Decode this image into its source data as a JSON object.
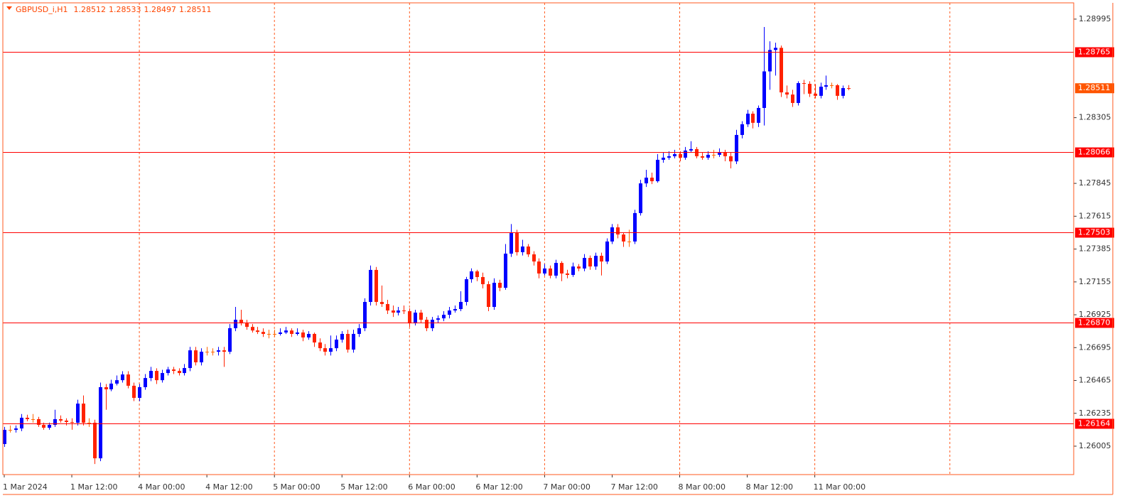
{
  "chart_data": {
    "type": "candlestick",
    "symbol": "GBPUSD_i,H1",
    "up_color": "#0000ff",
    "down_color": "#ff2200",
    "flat_color": "#ff6600",
    "frame_color": "#ff5a1f",
    "level_color": "#ff0000",
    "price_color": "#ff5500",
    "ylim": [
      1.25806,
      1.29109
    ],
    "xlim": [
      -0.25,
      190
    ],
    "yticks": [
      1.28995,
      1.28305,
      1.27845,
      1.27615,
      1.27385,
      1.27155,
      1.26925,
      1.26695,
      1.26465,
      1.26235,
      1.26005
    ],
    "xticks": [
      {
        "value": 0,
        "label": "1 Mar 2024"
      },
      {
        "value": 12,
        "label": "1 Mar 12:00"
      },
      {
        "value": 24,
        "label": "4 Mar 00:00"
      },
      {
        "value": 36,
        "label": "4 Mar 12:00"
      },
      {
        "value": 48,
        "label": "5 Mar 00:00"
      },
      {
        "value": 60,
        "label": "5 Mar 12:00"
      },
      {
        "value": 72,
        "label": "6 Mar 00:00"
      },
      {
        "value": 84,
        "label": "6 Mar 12:00"
      },
      {
        "value": 96,
        "label": "7 Mar 00:00"
      },
      {
        "value": 108,
        "label": "7 Mar 12:00"
      },
      {
        "value": 120,
        "label": "8 Mar 00:00"
      },
      {
        "value": 132,
        "label": "8 Mar 12:00"
      },
      {
        "value": 144,
        "label": "11 Mar 00:00"
      }
    ],
    "xgrid": [
      24,
      48,
      72,
      96,
      120,
      144,
      168
    ],
    "levels": [
      1.28765,
      1.28066,
      1.27503,
      {
        "value": 1.2687,
        "label": "1.26870"
      },
      1.26164
    ],
    "candles": [
      [
        1.2602,
        1.2614,
        1.26,
        1.26119
      ],
      [
        1.26119,
        1.2615,
        1.261,
        1.26119
      ],
      [
        1.26119,
        1.2615,
        1.261,
        1.26129
      ],
      [
        1.26129,
        1.2623,
        1.2611,
        1.26204
      ],
      [
        1.26204,
        1.26225,
        1.2618,
        1.26194
      ],
      [
        1.26194,
        1.2623,
        1.2617,
        1.26194
      ],
      [
        1.26194,
        1.2621,
        1.2614,
        1.26154
      ],
      [
        1.26154,
        1.2617,
        1.2612,
        1.26134
      ],
      [
        1.26134,
        1.2617,
        1.2612,
        1.26154
      ],
      [
        1.26154,
        1.2626,
        1.2614,
        1.26194
      ],
      [
        1.26194,
        1.2622,
        1.2617,
        1.26184
      ],
      [
        1.26184,
        1.262,
        1.2615,
        1.26174
      ],
      [
        1.26174,
        1.262,
        1.2612,
        1.26169
      ],
      [
        1.26169,
        1.2633,
        1.2615,
        1.26303
      ],
      [
        1.26303,
        1.2636,
        1.2615,
        1.26169
      ],
      [
        1.26169,
        1.262,
        1.2614,
        1.26169
      ],
      [
        1.26169,
        1.2619,
        1.2588,
        1.2592
      ],
      [
        1.2592,
        1.2645,
        1.259,
        1.26418
      ],
      [
        1.26418,
        1.2644,
        1.2626,
        1.26403
      ],
      [
        1.26403,
        1.2647,
        1.2639,
        1.26443
      ],
      [
        1.26443,
        1.265,
        1.2643,
        1.26467
      ],
      [
        1.26467,
        1.2653,
        1.2645,
        1.26507
      ],
      [
        1.26507,
        1.2653,
        1.2641,
        1.26428
      ],
      [
        1.26428,
        1.2645,
        1.2632,
        1.26343
      ],
      [
        1.26343,
        1.2644,
        1.2632,
        1.26418
      ],
      [
        1.26418,
        1.2651,
        1.264,
        1.26482
      ],
      [
        1.26482,
        1.2656,
        1.2646,
        1.26532
      ],
      [
        1.26532,
        1.2655,
        1.2644,
        1.26467
      ],
      [
        1.26467,
        1.2654,
        1.2645,
        1.26517
      ],
      [
        1.26517,
        1.2656,
        1.265,
        1.26542
      ],
      [
        1.26542,
        1.2656,
        1.2651,
        1.26532
      ],
      [
        1.26532,
        1.2655,
        1.265,
        1.26517
      ],
      [
        1.26517,
        1.2658,
        1.265,
        1.26552
      ],
      [
        1.26552,
        1.267,
        1.2653,
        1.26676
      ],
      [
        1.26676,
        1.267,
        1.2657,
        1.26592
      ],
      [
        1.26592,
        1.2669,
        1.2657,
        1.26666
      ],
      [
        1.26666,
        1.267,
        1.2664,
        1.26666
      ],
      [
        1.26666,
        1.2669,
        1.2664,
        1.26666
      ],
      [
        1.26666,
        1.267,
        1.2664,
        1.26676
      ],
      [
        1.26676,
        1.267,
        1.2656,
        1.26666
      ],
      [
        1.26666,
        1.2686,
        1.2665,
        1.26831
      ],
      [
        1.26831,
        1.2698,
        1.2681,
        1.2689
      ],
      [
        1.2689,
        1.2696,
        1.2685,
        1.26865
      ],
      [
        1.26865,
        1.2689,
        1.2682,
        1.2684
      ],
      [
        1.2684,
        1.2686,
        1.268,
        1.26815
      ],
      [
        1.26815,
        1.2684,
        1.2679,
        1.26805
      ],
      [
        1.26805,
        1.2683,
        1.2677,
        1.26791
      ],
      [
        1.26791,
        1.2682,
        1.2676,
        1.26791
      ],
      [
        1.26791,
        1.2682,
        1.2677,
        1.26791
      ],
      [
        1.26791,
        1.2683,
        1.2678,
        1.26801
      ],
      [
        1.26801,
        1.2684,
        1.2679,
        1.26815
      ],
      [
        1.26815,
        1.2683,
        1.2677,
        1.26791
      ],
      [
        1.26791,
        1.2683,
        1.2678,
        1.26801
      ],
      [
        1.26801,
        1.2682,
        1.2674,
        1.26766
      ],
      [
        1.26766,
        1.2681,
        1.2675,
        1.26791
      ],
      [
        1.26791,
        1.268,
        1.267,
        1.26731
      ],
      [
        1.26731,
        1.2676,
        1.2667,
        1.26691
      ],
      [
        1.26691,
        1.2672,
        1.2664,
        1.26666
      ],
      [
        1.26666,
        1.2678,
        1.2664,
        1.26691
      ],
      [
        1.26691,
        1.2678,
        1.2667,
        1.26751
      ],
      [
        1.26751,
        1.2681,
        1.2673,
        1.26791
      ],
      [
        1.26791,
        1.2682,
        1.2666,
        1.26681
      ],
      [
        1.26681,
        1.2682,
        1.2666,
        1.26791
      ],
      [
        1.26791,
        1.2686,
        1.2677,
        1.26831
      ],
      [
        1.26831,
        1.2704,
        1.2681,
        1.27015
      ],
      [
        1.27015,
        1.2727,
        1.2699,
        1.27239
      ],
      [
        1.27239,
        1.2726,
        1.2699,
        1.27015
      ],
      [
        1.27015,
        1.2713,
        1.2698,
        1.27
      ],
      [
        1.27,
        1.2703,
        1.2693,
        1.26955
      ],
      [
        1.26955,
        1.2699,
        1.2691,
        1.2694
      ],
      [
        1.2694,
        1.2698,
        1.2692,
        1.26955
      ],
      [
        1.26955,
        1.2699,
        1.2693,
        1.2695
      ],
      [
        1.2695,
        1.2697,
        1.2684,
        1.26865
      ],
      [
        1.26865,
        1.2696,
        1.2685,
        1.2694
      ],
      [
        1.2694,
        1.2696,
        1.2687,
        1.2689
      ],
      [
        1.2689,
        1.2691,
        1.2681,
        1.26831
      ],
      [
        1.26831,
        1.2691,
        1.2681,
        1.2689
      ],
      [
        1.2689,
        1.2692,
        1.2687,
        1.269
      ],
      [
        1.269,
        1.2695,
        1.2688,
        1.26925
      ],
      [
        1.26925,
        1.2698,
        1.269,
        1.26955
      ],
      [
        1.26955,
        1.2699,
        1.2694,
        1.26965
      ],
      [
        1.26965,
        1.2709,
        1.2695,
        1.27015
      ],
      [
        1.27015,
        1.2719,
        1.2699,
        1.27174
      ],
      [
        1.27174,
        1.2725,
        1.2715,
        1.27229
      ],
      [
        1.27229,
        1.2724,
        1.2716,
        1.27189
      ],
      [
        1.27189,
        1.2722,
        1.2711,
        1.27139
      ],
      [
        1.27139,
        1.2716,
        1.2695,
        1.2698
      ],
      [
        1.2698,
        1.2718,
        1.2696,
        1.27149
      ],
      [
        1.27149,
        1.2717,
        1.2709,
        1.27114
      ],
      [
        1.27114,
        1.2742,
        1.271,
        1.27353
      ],
      [
        1.27353,
        1.2756,
        1.2733,
        1.27497
      ],
      [
        1.27497,
        1.2752,
        1.2734,
        1.27363
      ],
      [
        1.27363,
        1.2745,
        1.2734,
        1.27403
      ],
      [
        1.27403,
        1.2742,
        1.2733,
        1.27348
      ],
      [
        1.27348,
        1.2737,
        1.2727,
        1.27298
      ],
      [
        1.27298,
        1.2732,
        1.2718,
        1.27214
      ],
      [
        1.27214,
        1.2728,
        1.272,
        1.27249
      ],
      [
        1.27249,
        1.2727,
        1.2718,
        1.27199
      ],
      [
        1.27199,
        1.2731,
        1.2718,
        1.27288
      ],
      [
        1.27288,
        1.273,
        1.2716,
        1.27214
      ],
      [
        1.27214,
        1.2724,
        1.2718,
        1.27204
      ],
      [
        1.27204,
        1.2729,
        1.2719,
        1.27263
      ],
      [
        1.27263,
        1.2728,
        1.2723,
        1.27249
      ],
      [
        1.27249,
        1.2735,
        1.2723,
        1.27323
      ],
      [
        1.27323,
        1.2734,
        1.2724,
        1.27263
      ],
      [
        1.27263,
        1.2736,
        1.2724,
        1.27338
      ],
      [
        1.27338,
        1.2736,
        1.272,
        1.27298
      ],
      [
        1.27298,
        1.2746,
        1.2728,
        1.27438
      ],
      [
        1.27438,
        1.2756,
        1.2742,
        1.27537
      ],
      [
        1.27537,
        1.2756,
        1.2746,
        1.27487
      ],
      [
        1.27487,
        1.275,
        1.274,
        1.27438
      ],
      [
        1.27438,
        1.2752,
        1.274,
        1.27438
      ],
      [
        1.27438,
        1.2766,
        1.2742,
        1.27637
      ],
      [
        1.27637,
        1.2787,
        1.2762,
        1.27845
      ],
      [
        1.27845,
        1.2794,
        1.2782,
        1.27885
      ],
      [
        1.27885,
        1.2792,
        1.2784,
        1.2786
      ],
      [
        1.2786,
        1.2805,
        1.2785,
        1.2801
      ],
      [
        1.2801,
        1.2806,
        1.2799,
        1.28025
      ],
      [
        1.28025,
        1.2807,
        1.2801,
        1.28035
      ],
      [
        1.28035,
        1.2808,
        1.2802,
        1.2805
      ],
      [
        1.2805,
        1.2807,
        1.28,
        1.28025
      ],
      [
        1.28025,
        1.281,
        1.2801,
        1.28075
      ],
      [
        1.28075,
        1.2814,
        1.2806,
        1.28085
      ],
      [
        1.28085,
        1.281,
        1.2802,
        1.28035
      ],
      [
        1.28035,
        1.2806,
        1.2801,
        1.28025
      ],
      [
        1.28025,
        1.2807,
        1.2801,
        1.28045
      ],
      [
        1.28045,
        1.2808,
        1.2802,
        1.28045
      ],
      [
        1.28045,
        1.2809,
        1.2803,
        1.2806
      ],
      [
        1.2806,
        1.2808,
        1.28,
        1.28035
      ],
      [
        1.28035,
        1.2806,
        1.2795,
        1.27999
      ],
      [
        1.27999,
        1.2822,
        1.2798,
        1.28184
      ],
      [
        1.28184,
        1.2828,
        1.2816,
        1.28259
      ],
      [
        1.28259,
        1.2836,
        1.2824,
        1.28333
      ],
      [
        1.28333,
        1.2835,
        1.2823,
        1.28269
      ],
      [
        1.28269,
        1.2839,
        1.2824,
        1.28373
      ],
      [
        1.28373,
        1.2894,
        1.2825,
        1.28629
      ],
      [
        1.28629,
        1.2884,
        1.285,
        1.28779
      ],
      [
        1.28779,
        1.2883,
        1.286,
        1.28794
      ],
      [
        1.28794,
        1.2881,
        1.2845,
        1.28482
      ],
      [
        1.28482,
        1.2853,
        1.2844,
        1.28467
      ],
      [
        1.28467,
        1.285,
        1.2838,
        1.28408
      ],
      [
        1.28408,
        1.2856,
        1.2839,
        1.28547
      ],
      [
        1.28547,
        1.2857,
        1.2847,
        1.28542
      ],
      [
        1.28542,
        1.2856,
        1.2845,
        1.28473
      ],
      [
        1.28473,
        1.2854,
        1.2844,
        1.28458
      ],
      [
        1.28458,
        1.2855,
        1.2844,
        1.28522
      ],
      [
        1.28522,
        1.286,
        1.285,
        1.28532
      ],
      [
        1.28532,
        1.2855,
        1.2851,
        1.28532
      ],
      [
        1.28532,
        1.2854,
        1.2843,
        1.28458
      ],
      [
        1.28458,
        1.2853,
        1.2844,
        1.28512
      ],
      [
        1.28512,
        1.28533,
        1.28497,
        1.28511
      ]
    ]
  }
}
